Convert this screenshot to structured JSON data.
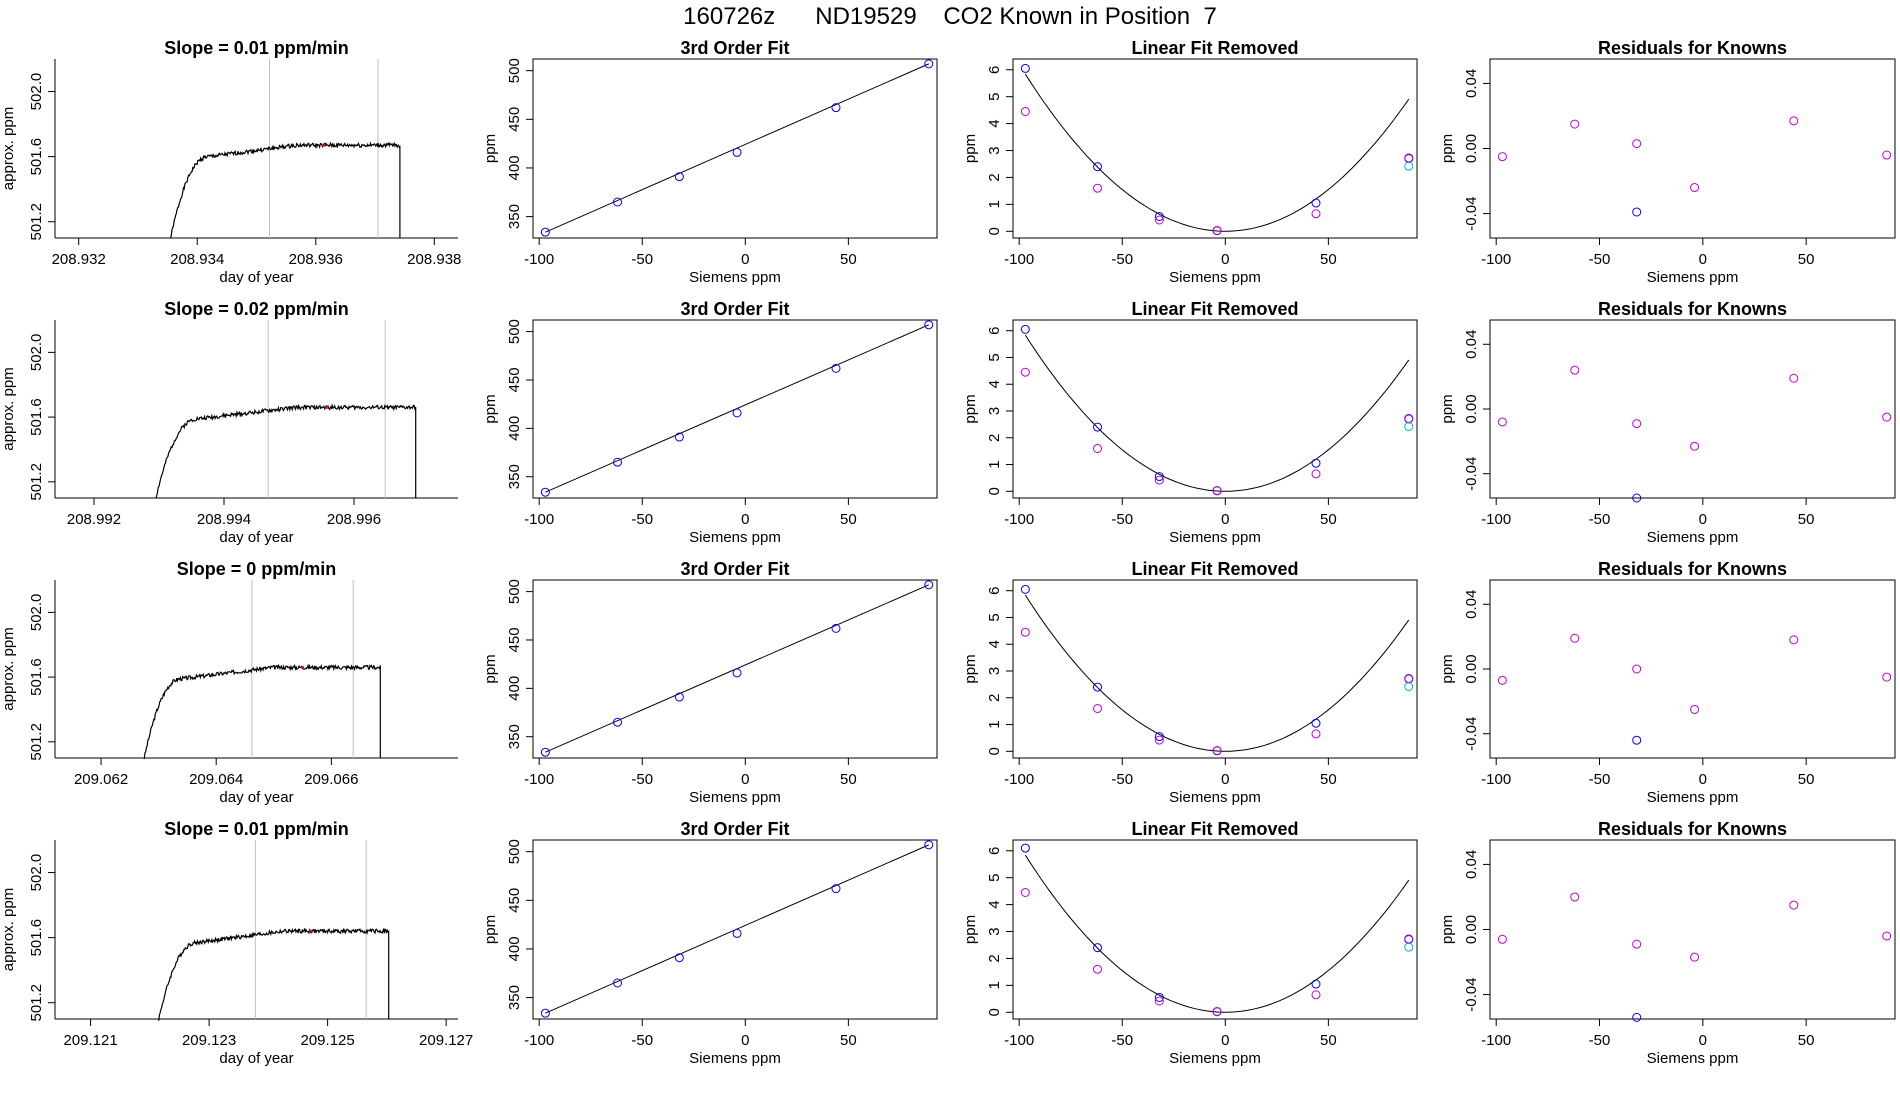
{
  "title": "160726z      ND19529    CO2 Known in Position  7",
  "colors": {
    "trace": "#000000",
    "vline": "#bebebe",
    "blue": "#0000ff",
    "magenta": "#c000e0",
    "cyan": "#00b0e0",
    "marker": "#ff0000"
  },
  "chart_data": [
    {
      "type": "line",
      "title": "Slope =  0.01  ppm/min",
      "xlabel": "day of year",
      "ylabel": "approx. ppm",
      "xlim": [
        208.9316,
        208.9384
      ],
      "ylim": [
        501.1,
        502.2
      ],
      "xticks": [
        208.932,
        208.934,
        208.936,
        208.938
      ],
      "xtick_labels": [
        "208.932",
        "208.934",
        "208.936",
        "208.938"
      ],
      "yticks": [
        501.2,
        501.6,
        502.0
      ],
      "ytick_labels": [
        "501.2",
        "501.6",
        "502.0"
      ],
      "vlines": [
        208.93522,
        208.93705
      ],
      "trace": {
        "x_start": 208.93355,
        "rise_end": 208.9342,
        "x_end": 208.93742,
        "plateau": 501.67,
        "seed": 1
      }
    },
    {
      "type": "line",
      "title": "Slope =  0.02  ppm/min",
      "xlabel": "day of year",
      "ylabel": "approx. ppm",
      "xlim": [
        208.9914,
        208.9976
      ],
      "ylim": [
        501.1,
        502.2
      ],
      "xticks": [
        208.992,
        208.994,
        208.996
      ],
      "xtick_labels": [
        "208.992",
        "208.994",
        "208.996"
      ],
      "yticks": [
        501.2,
        501.6,
        502.0
      ],
      "ytick_labels": [
        "501.2",
        "501.6",
        "502.0"
      ],
      "vlines": [
        208.99468,
        208.99648
      ],
      "trace": {
        "x_start": 208.99295,
        "rise_end": 208.9936,
        "x_end": 208.99695,
        "plateau": 501.66,
        "seed": 2
      }
    },
    {
      "type": "line",
      "title": "Slope =  0  ppm/min",
      "xlabel": "day of year",
      "ylabel": "approx. ppm",
      "xlim": [
        209.0612,
        209.0682
      ],
      "ylim": [
        501.1,
        502.2
      ],
      "xticks": [
        209.062,
        209.064,
        209.066
      ],
      "xtick_labels": [
        "209.062",
        "209.064",
        "209.066"
      ],
      "yticks": [
        501.2,
        501.6,
        502.0
      ],
      "ytick_labels": [
        "501.2",
        "501.6",
        "502.0"
      ],
      "vlines": [
        209.06462,
        209.06638
      ],
      "trace": {
        "x_start": 209.06275,
        "rise_end": 209.0634,
        "x_end": 209.06685,
        "plateau": 501.66,
        "seed": 3
      }
    },
    {
      "type": "line",
      "title": "Slope =  0.01  ppm/min",
      "xlabel": "day of year",
      "ylabel": "approx. ppm",
      "xlim": [
        209.1204,
        209.1272
      ],
      "ylim": [
        501.1,
        502.2
      ],
      "xticks": [
        209.121,
        209.123,
        209.125,
        209.127
      ],
      "xtick_labels": [
        "209.121",
        "209.123",
        "209.125",
        "209.127"
      ],
      "yticks": [
        501.2,
        501.6,
        502.0
      ],
      "ytick_labels": [
        "501.2",
        "501.6",
        "502.0"
      ],
      "vlines": [
        209.12378,
        209.12565
      ],
      "trace": {
        "x_start": 209.12215,
        "rise_end": 209.1228,
        "x_end": 209.12603,
        "plateau": 501.64,
        "seed": 4
      }
    },
    {
      "type": "scatter",
      "title": "3rd Order Fit",
      "xlabel": "Siemens ppm",
      "ylabel": "ppm",
      "xlim": [
        -103,
        93
      ],
      "ylim": [
        328,
        512
      ],
      "xticks": [
        -100,
        -50,
        0,
        50
      ],
      "xtick_labels": [
        "-100",
        "-50",
        "0",
        "50"
      ],
      "yticks": [
        350,
        400,
        450,
        500
      ],
      "ytick_labels": [
        "350",
        "400",
        "450",
        "500"
      ],
      "x": [
        -97,
        -62,
        -32,
        -4,
        44,
        89
      ],
      "y": [
        334,
        365,
        391,
        416,
        462,
        507
      ],
      "fit": "line"
    },
    {
      "type": "scatter",
      "title": "3rd Order Fit",
      "xlabel": "Siemens ppm",
      "ylabel": "ppm",
      "xlim": [
        -103,
        93
      ],
      "ylim": [
        328,
        512
      ],
      "xticks": [
        -100,
        -50,
        0,
        50
      ],
      "xtick_labels": [
        "-100",
        "-50",
        "0",
        "50"
      ],
      "yticks": [
        350,
        400,
        450,
        500
      ],
      "ytick_labels": [
        "350",
        "400",
        "450",
        "500"
      ],
      "x": [
        -97,
        -62,
        -32,
        -4,
        44,
        89
      ],
      "y": [
        334,
        365,
        391,
        416,
        462,
        507
      ],
      "fit": "line"
    },
    {
      "type": "scatter",
      "title": "3rd Order Fit",
      "xlabel": "Siemens ppm",
      "ylabel": "ppm",
      "xlim": [
        -103,
        93
      ],
      "ylim": [
        328,
        512
      ],
      "xticks": [
        -100,
        -50,
        0,
        50
      ],
      "xtick_labels": [
        "-100",
        "-50",
        "0",
        "50"
      ],
      "yticks": [
        350,
        400,
        450,
        500
      ],
      "ytick_labels": [
        "350",
        "400",
        "450",
        "500"
      ],
      "x": [
        -97,
        -62,
        -32,
        -4,
        44,
        89
      ],
      "y": [
        334,
        365,
        391,
        416,
        462,
        507
      ],
      "fit": "line"
    },
    {
      "type": "scatter",
      "title": "3rd Order Fit",
      "xlabel": "Siemens ppm",
      "ylabel": "ppm",
      "xlim": [
        -103,
        93
      ],
      "ylim": [
        328,
        512
      ],
      "xticks": [
        -100,
        -50,
        0,
        50
      ],
      "xtick_labels": [
        "-100",
        "-50",
        "0",
        "50"
      ],
      "yticks": [
        350,
        400,
        450,
        500
      ],
      "ytick_labels": [
        "350",
        "400",
        "450",
        "500"
      ],
      "x": [
        -97,
        -62,
        -32,
        -4,
        44,
        89
      ],
      "y": [
        334,
        365,
        391,
        416,
        462,
        507
      ],
      "fit": "line"
    },
    {
      "type": "scatter",
      "title": "Linear Fit Removed",
      "xlabel": "Siemens ppm",
      "ylabel": "ppm",
      "xlim": [
        -103,
        93
      ],
      "ylim": [
        -0.25,
        6.4
      ],
      "xticks": [
        -100,
        -50,
        0,
        50
      ],
      "xtick_labels": [
        "-100",
        "-50",
        "0",
        "50"
      ],
      "yticks": [
        0,
        1,
        2,
        3,
        4,
        5,
        6
      ],
      "ytick_labels": [
        "0",
        "1",
        "2",
        "3",
        "4",
        "5",
        "6"
      ],
      "series": [
        {
          "name": "blue",
          "x": [
            -97,
            -62,
            -32,
            -4,
            44,
            89
          ],
          "y": [
            6.05,
            2.4,
            0.55,
            0.02,
            1.05,
            2.72
          ]
        },
        {
          "name": "magenta",
          "x": [
            -97,
            -62,
            -32,
            -4,
            44,
            89
          ],
          "y": [
            4.45,
            1.6,
            0.42,
            0.03,
            0.65,
            2.7
          ]
        },
        {
          "name": "cyan",
          "x": [
            89
          ],
          "y": [
            2.42
          ]
        }
      ],
      "fit": "curve"
    },
    {
      "type": "scatter",
      "title": "Linear Fit Removed",
      "xlabel": "Siemens ppm",
      "ylabel": "ppm",
      "xlim": [
        -103,
        93
      ],
      "ylim": [
        -0.25,
        6.4
      ],
      "xticks": [
        -100,
        -50,
        0,
        50
      ],
      "xtick_labels": [
        "-100",
        "-50",
        "0",
        "50"
      ],
      "yticks": [
        0,
        1,
        2,
        3,
        4,
        5,
        6
      ],
      "ytick_labels": [
        "0",
        "1",
        "2",
        "3",
        "4",
        "5",
        "6"
      ],
      "series": [
        {
          "name": "blue",
          "x": [
            -97,
            -62,
            -32,
            -4,
            44,
            89
          ],
          "y": [
            6.05,
            2.4,
            0.55,
            0.02,
            1.05,
            2.72
          ]
        },
        {
          "name": "magenta",
          "x": [
            -97,
            -62,
            -32,
            -4,
            44,
            89
          ],
          "y": [
            4.45,
            1.6,
            0.42,
            0.03,
            0.65,
            2.7
          ]
        },
        {
          "name": "cyan",
          "x": [
            89
          ],
          "y": [
            2.42
          ]
        }
      ],
      "fit": "curve"
    },
    {
      "type": "scatter",
      "title": "Linear Fit Removed",
      "xlabel": "Siemens ppm",
      "ylabel": "ppm",
      "xlim": [
        -103,
        93
      ],
      "ylim": [
        -0.25,
        6.4
      ],
      "xticks": [
        -100,
        -50,
        0,
        50
      ],
      "xtick_labels": [
        "-100",
        "-50",
        "0",
        "50"
      ],
      "yticks": [
        0,
        1,
        2,
        3,
        4,
        5,
        6
      ],
      "ytick_labels": [
        "0",
        "1",
        "2",
        "3",
        "4",
        "5",
        "6"
      ],
      "series": [
        {
          "name": "blue",
          "x": [
            -97,
            -62,
            -32,
            -4,
            44,
            89
          ],
          "y": [
            6.05,
            2.4,
            0.55,
            0.02,
            1.05,
            2.72
          ]
        },
        {
          "name": "magenta",
          "x": [
            -97,
            -62,
            -32,
            -4,
            44,
            89
          ],
          "y": [
            4.45,
            1.6,
            0.42,
            0.03,
            0.65,
            2.7
          ]
        },
        {
          "name": "cyan",
          "x": [
            89
          ],
          "y": [
            2.42
          ]
        }
      ],
      "fit": "curve"
    },
    {
      "type": "scatter",
      "title": "Linear Fit Removed",
      "xlabel": "Siemens ppm",
      "ylabel": "ppm",
      "xlim": [
        -103,
        93
      ],
      "ylim": [
        -0.25,
        6.4
      ],
      "xticks": [
        -100,
        -50,
        0,
        50
      ],
      "xtick_labels": [
        "-100",
        "-50",
        "0",
        "50"
      ],
      "yticks": [
        0,
        1,
        2,
        3,
        4,
        5,
        6
      ],
      "ytick_labels": [
        "0",
        "1",
        "2",
        "3",
        "4",
        "5",
        "6"
      ],
      "series": [
        {
          "name": "blue",
          "x": [
            -97,
            -62,
            -32,
            -4,
            44,
            89
          ],
          "y": [
            6.1,
            2.4,
            0.55,
            0.02,
            1.05,
            2.72
          ]
        },
        {
          "name": "magenta",
          "x": [
            -97,
            -62,
            -32,
            -4,
            44,
            89
          ],
          "y": [
            4.45,
            1.6,
            0.42,
            0.03,
            0.65,
            2.7
          ]
        },
        {
          "name": "cyan",
          "x": [
            89
          ],
          "y": [
            2.42
          ]
        }
      ],
      "fit": "curve"
    },
    {
      "type": "scatter",
      "title": "Residuals for Knowns",
      "xlabel": "Siemens ppm",
      "ylabel": "ppm",
      "xlim": [
        -103,
        93
      ],
      "ylim": [
        -0.055,
        0.055
      ],
      "xticks": [
        -100,
        -50,
        0,
        50
      ],
      "xtick_labels": [
        "-100",
        "-50",
        "0",
        "50"
      ],
      "yticks": [
        -0.04,
        0,
        0.04
      ],
      "ytick_labels": [
        "-0.04",
        "0.00",
        "0.04"
      ],
      "series": [
        {
          "name": "magenta",
          "x": [
            -97,
            -62,
            -32,
            -4,
            44,
            89
          ],
          "y": [
            -0.005,
            0.015,
            0.003,
            -0.024,
            0.017,
            -0.004
          ]
        },
        {
          "name": "blue",
          "x": [
            -32
          ],
          "y": [
            -0.039
          ]
        }
      ]
    },
    {
      "type": "scatter",
      "title": "Residuals for Knowns",
      "xlabel": "Siemens ppm",
      "ylabel": "ppm",
      "xlim": [
        -103,
        93
      ],
      "ylim": [
        -0.055,
        0.055
      ],
      "xticks": [
        -100,
        -50,
        0,
        50
      ],
      "xtick_labels": [
        "-100",
        "-50",
        "0",
        "50"
      ],
      "yticks": [
        -0.04,
        0,
        0.04
      ],
      "ytick_labels": [
        "-0.04",
        "0.00",
        "0.04"
      ],
      "series": [
        {
          "name": "magenta",
          "x": [
            -97,
            -62,
            -32,
            -4,
            44,
            89
          ],
          "y": [
            -0.008,
            0.024,
            -0.009,
            -0.023,
            0.019,
            -0.005
          ]
        },
        {
          "name": "blue",
          "x": [
            -32
          ],
          "y": [
            -0.055
          ]
        }
      ]
    },
    {
      "type": "scatter",
      "title": "Residuals for Knowns",
      "xlabel": "Siemens ppm",
      "ylabel": "ppm",
      "xlim": [
        -103,
        93
      ],
      "ylim": [
        -0.055,
        0.055
      ],
      "xticks": [
        -100,
        -50,
        0,
        50
      ],
      "xtick_labels": [
        "-100",
        "-50",
        "0",
        "50"
      ],
      "yticks": [
        -0.04,
        0,
        0.04
      ],
      "ytick_labels": [
        "-0.04",
        "0.00",
        "0.04"
      ],
      "series": [
        {
          "name": "magenta",
          "x": [
            -97,
            -62,
            -32,
            -4,
            44,
            89
          ],
          "y": [
            -0.007,
            0.019,
            0.0,
            -0.025,
            0.018,
            -0.005
          ]
        },
        {
          "name": "blue",
          "x": [
            -32
          ],
          "y": [
            -0.044
          ]
        }
      ]
    },
    {
      "type": "scatter",
      "title": "Residuals for Knowns",
      "xlabel": "Siemens ppm",
      "ylabel": "ppm",
      "xlim": [
        -103,
        93
      ],
      "ylim": [
        -0.055,
        0.055
      ],
      "xticks": [
        -100,
        -50,
        0,
        50
      ],
      "xtick_labels": [
        "-100",
        "-50",
        "0",
        "50"
      ],
      "yticks": [
        -0.04,
        0,
        0.04
      ],
      "ytick_labels": [
        "-0.04",
        "0.00",
        "0.04"
      ],
      "series": [
        {
          "name": "magenta",
          "x": [
            -97,
            -62,
            -32,
            -4,
            44,
            89
          ],
          "y": [
            -0.006,
            0.02,
            -0.009,
            -0.017,
            0.015,
            -0.004
          ]
        },
        {
          "name": "blue",
          "x": [
            -32
          ],
          "y": [
            -0.054
          ]
        }
      ]
    }
  ]
}
